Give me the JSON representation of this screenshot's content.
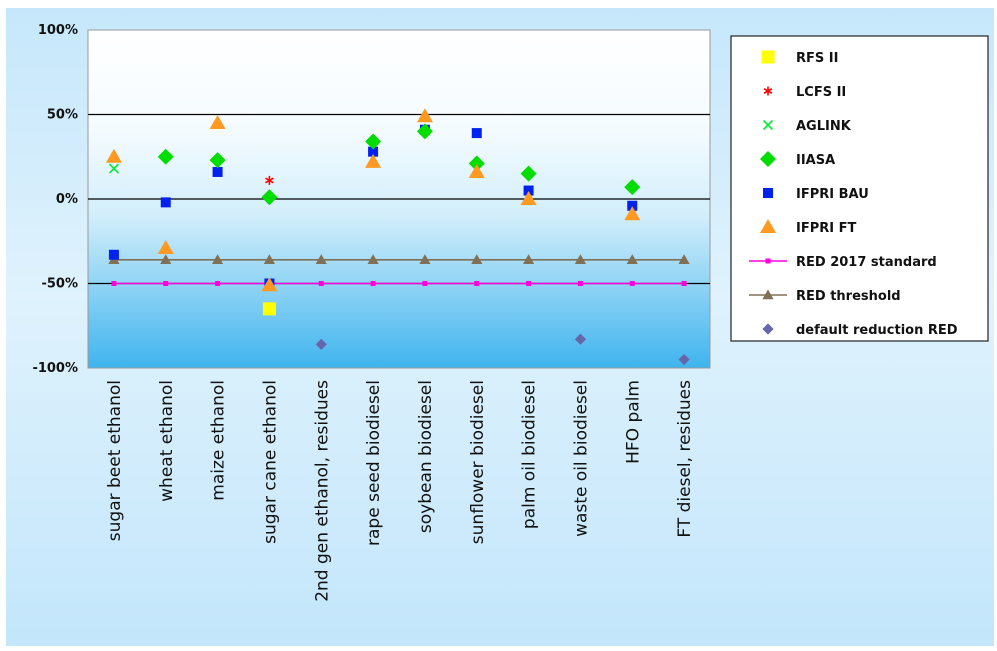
{
  "chart_data": {
    "type": "scatter",
    "title": "",
    "xlabel": "",
    "ylabel": "",
    "ylim": [
      -100,
      100
    ],
    "y_ticks": [
      "100%",
      "50%",
      "0%",
      "-50%",
      "-100%"
    ],
    "y_tick_values": [
      100,
      50,
      0,
      -50,
      -100
    ],
    "grid": "horizontal lines at 50, 0, -50",
    "legend_position": "right",
    "categories": [
      "sugar beet ethanol",
      "wheat ethanol",
      "maize ethanol",
      "sugar cane ethanol",
      "2nd gen ethanol, residues",
      "rape seed biodiesel",
      "soybean biodiesel",
      "sunflower biodiesel",
      "palm oil biodiesel",
      "waste oil biodiesel",
      "HFO palm",
      "FT diesel, residues"
    ],
    "series": [
      {
        "name": "RFS II",
        "marker": "square",
        "color": "#ffff00",
        "size": 13,
        "values": [
          null,
          null,
          null,
          -65,
          null,
          null,
          null,
          null,
          null,
          null,
          null,
          null
        ]
      },
      {
        "name": "LCFS II",
        "marker": "asterisk",
        "color": "#ff0000",
        "size": 9,
        "values": [
          null,
          null,
          null,
          11,
          null,
          null,
          null,
          null,
          null,
          null,
          null,
          null
        ]
      },
      {
        "name": "AGLINK",
        "marker": "x",
        "color": "#00ee33",
        "size": 9,
        "values": [
          18,
          null,
          null,
          null,
          null,
          null,
          null,
          null,
          null,
          null,
          null,
          null
        ]
      },
      {
        "name": "IIASA",
        "marker": "diamond",
        "color": "#00dd00",
        "size": 10,
        "values": [
          null,
          25,
          23,
          1,
          null,
          34,
          40,
          21,
          15,
          null,
          7,
          null
        ]
      },
      {
        "name": "IFPRI BAU",
        "marker": "square",
        "color": "#0022ee",
        "size": 10,
        "values": [
          -33,
          -2,
          16,
          -50,
          null,
          28,
          41,
          39,
          5,
          null,
          -4,
          null
        ]
      },
      {
        "name": "IFPRI FT",
        "marker": "triangle",
        "color": "#ff9922",
        "size": 10,
        "values": [
          25,
          -29,
          45,
          -51,
          null,
          22,
          49,
          16,
          0,
          null,
          -9,
          null
        ]
      },
      {
        "name": "RED 2017 standard",
        "marker": "square-line",
        "color": "#ff00dd",
        "size": 5,
        "values": [
          -50,
          -50,
          -50,
          -50,
          -50,
          -50,
          -50,
          -50,
          -50,
          -50,
          -50,
          -50
        ]
      },
      {
        "name": "RED threshold",
        "marker": "triangle-line",
        "color": "#807055",
        "size": 7,
        "values": [
          -36,
          -36,
          -36,
          -36,
          -36,
          -36,
          -36,
          -36,
          -36,
          -36,
          -36,
          -36
        ]
      },
      {
        "name": "default reduction RED",
        "marker": "diamond",
        "color": "#6666aa",
        "size": 7,
        "values": [
          null,
          null,
          null,
          null,
          -86,
          null,
          null,
          null,
          null,
          -83,
          null,
          -95
        ]
      }
    ]
  }
}
